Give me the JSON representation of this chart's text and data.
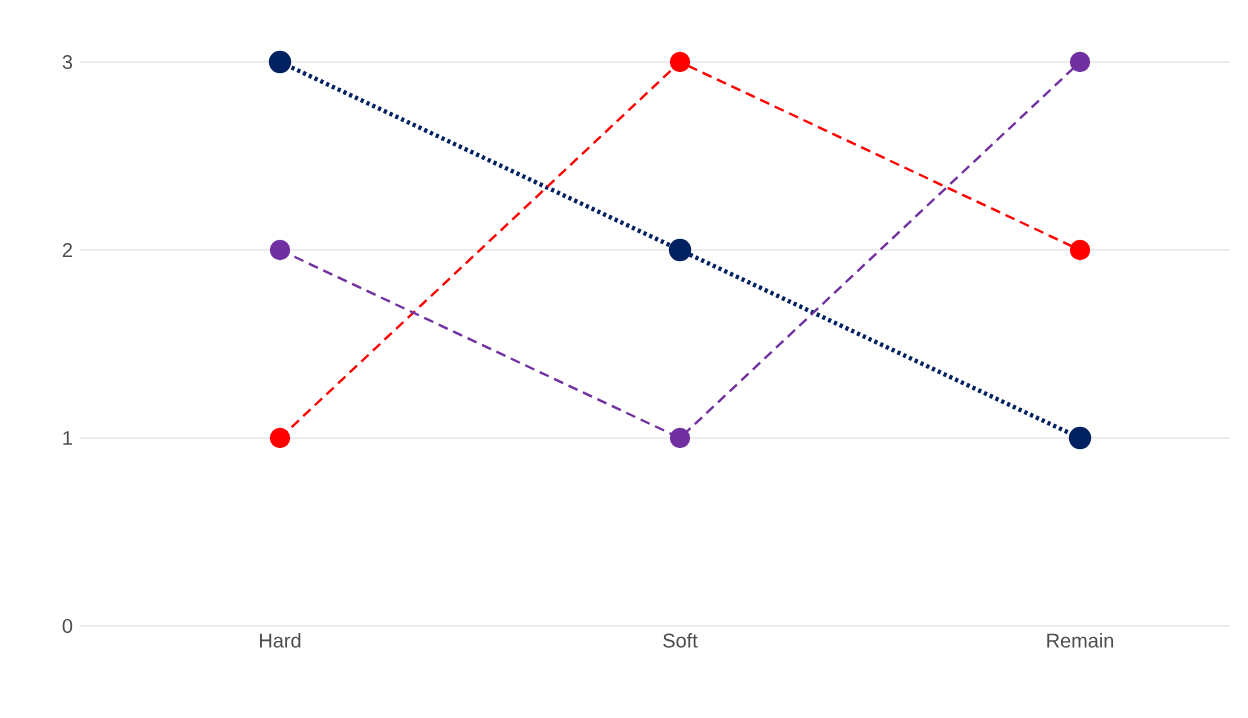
{
  "chart_data": {
    "type": "line",
    "categories": [
      "Hard",
      "Soft",
      "Remain"
    ],
    "series": [
      {
        "color": "#002060",
        "values": [
          3,
          2,
          1
        ],
        "line_style": "dotted"
      },
      {
        "color": "#ff0000",
        "values": [
          1,
          3,
          2
        ],
        "line_style": "dashed"
      },
      {
        "color": "#7030a0",
        "values": [
          2,
          1,
          3
        ],
        "line_style": "dashed"
      }
    ],
    "ylim": [
      0,
      3
    ],
    "yticks": [
      0,
      1,
      2,
      3
    ],
    "grid": "y",
    "marker": "circle"
  }
}
